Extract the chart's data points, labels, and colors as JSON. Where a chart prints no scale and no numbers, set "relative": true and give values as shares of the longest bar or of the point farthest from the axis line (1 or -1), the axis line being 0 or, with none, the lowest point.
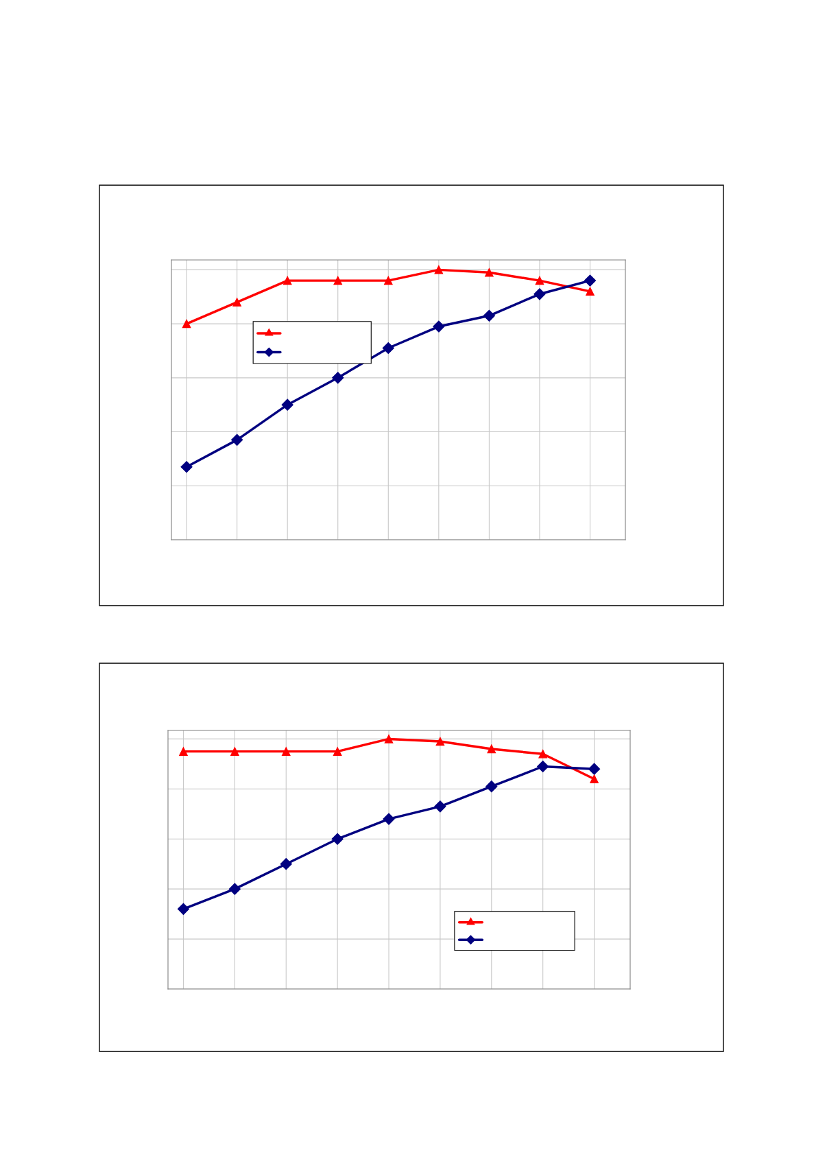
{
  "chart_data": [
    {
      "type": "line",
      "relative": true,
      "categories": [
        null,
        null,
        null,
        null,
        null,
        null,
        null,
        null,
        null
      ],
      "grid": true,
      "line_style": "solid",
      "series": [
        {
          "color": "#ff0000",
          "marker": "triangle",
          "values": [
            0.8,
            0.88,
            0.96,
            0.96,
            0.96,
            1,
            0.99,
            0.96,
            0.92
          ]
        },
        {
          "color": "#000080",
          "marker": "diamond",
          "values": [
            0.27,
            0.37,
            0.5,
            0.6,
            0.71,
            0.79,
            0.83,
            0.91,
            0.96
          ]
        }
      ]
    },
    {
      "type": "line",
      "relative": true,
      "categories": [
        null,
        null,
        null,
        null,
        null,
        null,
        null,
        null,
        null
      ],
      "grid": true,
      "line_style": "solid",
      "series": [
        {
          "color": "#ff0000",
          "marker": "triangle",
          "values": [
            0.95,
            0.95,
            0.95,
            0.95,
            1,
            0.99,
            0.96,
            0.94,
            0.84
          ]
        },
        {
          "color": "#000080",
          "marker": "diamond",
          "values": [
            0.32,
            0.4,
            0.5,
            0.6,
            0.68,
            0.73,
            0.81,
            0.89,
            0.88
          ]
        }
      ]
    }
  ]
}
